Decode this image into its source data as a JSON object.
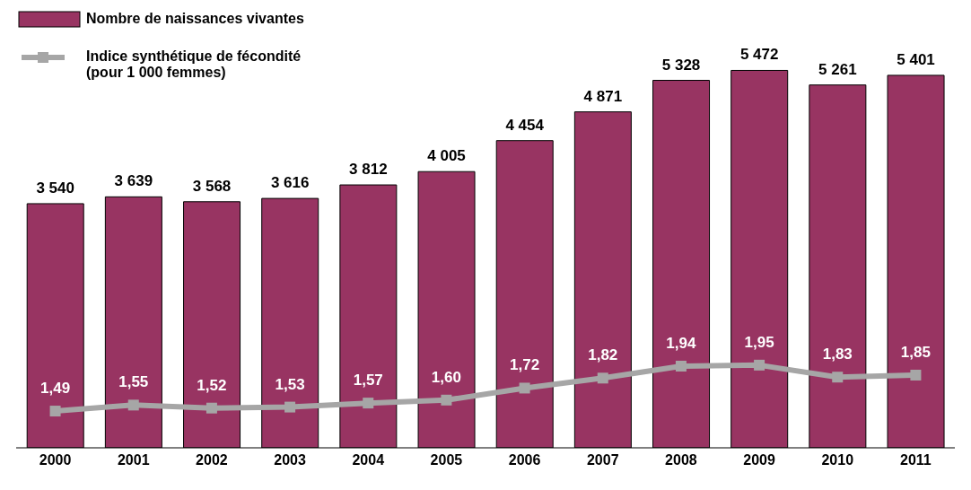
{
  "chart_data": {
    "type": "bar",
    "categories": [
      "2000",
      "2001",
      "2002",
      "2003",
      "2004",
      "2005",
      "2006",
      "2007",
      "2008",
      "2009",
      "2010",
      "2011"
    ],
    "series": [
      {
        "name": "Nombre de naissances vivantes",
        "color": "#983462",
        "values": [
          3540,
          3639,
          3568,
          3616,
          3812,
          4005,
          4454,
          4871,
          5328,
          5472,
          5261,
          5401
        ],
        "value_labels": [
          "3 540",
          "3 639",
          "3 568",
          "3 616",
          "3 812",
          "4 005",
          "4 454",
          "4 871",
          "5 328",
          "5 472",
          "5 261",
          "5 401"
        ]
      },
      {
        "type": "line",
        "axis": "y2",
        "name": "Indice synthétique de fécondité (pour 1 000 femmes)",
        "color": "#a6a6a6",
        "marker": "square",
        "values": [
          1.49,
          1.55,
          1.52,
          1.53,
          1.57,
          1.6,
          1.72,
          1.82,
          1.94,
          1.95,
          1.83,
          1.85
        ],
        "value_labels": [
          "1,49",
          "1,55",
          "1,52",
          "1,53",
          "1,57",
          "1,60",
          "1,72",
          "1,82",
          "1,94",
          "1,95",
          "1,83",
          "1,85"
        ]
      }
    ],
    "tick_labels": "x",
    "legend": "top left"
  }
}
